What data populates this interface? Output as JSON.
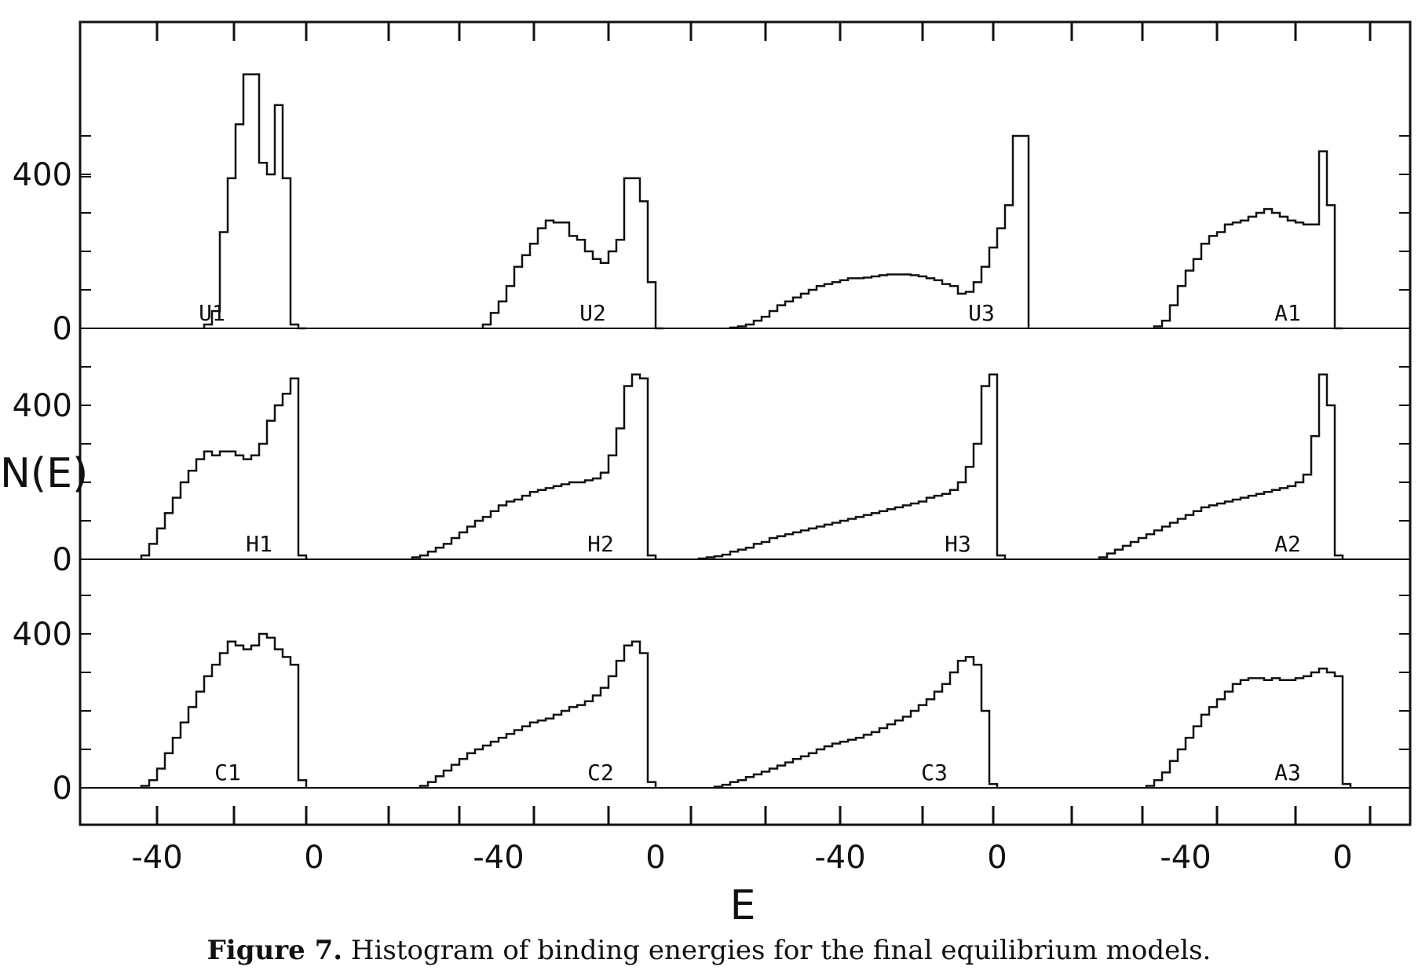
{
  "caption": {
    "label": "Figure 7.",
    "text": "Histogram of binding energies for the final equilibrium models."
  },
  "chart_data": {
    "type": "histogram",
    "xlabel": "E",
    "ylabel": "N(E)",
    "layout": "3 rows x 4 columns of histograms sharing axes",
    "x_ticks": [
      "-40",
      "0"
    ],
    "y_ticks": [
      "0",
      "400"
    ],
    "xlim": [
      -52,
      8
    ],
    "ylim": [
      -100,
      640
    ],
    "panels": [
      {
        "name": "U1",
        "row": 0,
        "col": 0,
        "bin_width": 2,
        "edges": [
          -28,
          -26,
          -24,
          -22,
          -20,
          -18,
          -16,
          -14,
          -12,
          -10,
          -8,
          -6,
          -4,
          -2
        ],
        "counts": [
          10,
          45,
          250,
          390,
          530,
          660,
          660,
          430,
          400,
          580,
          390,
          10,
          0
        ]
      },
      {
        "name": "U2",
        "row": 0,
        "col": 1,
        "bin_width": 2,
        "edges": [
          -44,
          -42,
          -40,
          -38,
          -36,
          -34,
          -32,
          -30,
          -28,
          -26,
          -24,
          -22,
          -20,
          -18,
          -16,
          -14,
          -12,
          -10,
          -8,
          -6,
          -4,
          -2,
          0,
          2
        ],
        "counts": [
          10,
          40,
          70,
          110,
          160,
          190,
          220,
          260,
          280,
          275,
          275,
          240,
          230,
          200,
          180,
          170,
          200,
          230,
          390,
          390,
          330,
          120,
          0
        ]
      },
      {
        "name": "U3",
        "row": 0,
        "col": 2,
        "bin_width": 2,
        "edges": [
          -68,
          -66,
          -64,
          -62,
          -60,
          -58,
          -56,
          -54,
          -52,
          -50,
          -48,
          -46,
          -44,
          -42,
          -40,
          -38,
          -36,
          -34,
          -32,
          -30,
          -28,
          -26,
          -24,
          -22,
          -20,
          -18,
          -16,
          -14,
          -12,
          -10,
          -8,
          -6,
          -4,
          -2,
          0,
          2,
          4,
          6,
          8
        ],
        "counts": [
          2,
          5,
          10,
          20,
          30,
          45,
          60,
          70,
          80,
          90,
          100,
          110,
          115,
          120,
          125,
          130,
          130,
          132,
          135,
          138,
          140,
          140,
          140,
          138,
          135,
          130,
          125,
          115,
          110,
          90,
          95,
          120,
          160,
          210,
          260,
          320,
          500,
          500
        ]
      },
      {
        "name": "A1",
        "row": 0,
        "col": 3,
        "bin_width": 2,
        "edges": [
          -48,
          -46,
          -44,
          -42,
          -40,
          -38,
          -36,
          -34,
          -32,
          -30,
          -28,
          -26,
          -24,
          -22,
          -20,
          -18,
          -16,
          -14,
          -12,
          -10,
          -8,
          -6,
          -4,
          -2,
          0
        ],
        "counts": [
          5,
          20,
          60,
          110,
          150,
          180,
          220,
          240,
          250,
          270,
          275,
          280,
          290,
          300,
          310,
          300,
          290,
          280,
          275,
          270,
          270,
          460,
          320,
          0
        ]
      },
      {
        "name": "H1",
        "row": 1,
        "col": 0,
        "bin_width": 2,
        "edges": [
          -44,
          -42,
          -40,
          -38,
          -36,
          -34,
          -32,
          -30,
          -28,
          -26,
          -24,
          -22,
          -20,
          -18,
          -16,
          -14,
          -12,
          -10,
          -8,
          -6,
          -4,
          -2
        ],
        "counts": [
          10,
          40,
          80,
          120,
          160,
          200,
          230,
          260,
          280,
          270,
          280,
          280,
          270,
          260,
          270,
          300,
          360,
          400,
          430,
          470,
          10
        ]
      },
      {
        "name": "H2",
        "row": 1,
        "col": 1,
        "bin_width": 2,
        "edges": [
          -62,
          -60,
          -58,
          -56,
          -54,
          -52,
          -50,
          -48,
          -46,
          -44,
          -42,
          -40,
          -38,
          -36,
          -34,
          -32,
          -30,
          -28,
          -26,
          -24,
          -22,
          -20,
          -18,
          -16,
          -14,
          -12,
          -10,
          -8,
          -6,
          -4,
          -2,
          0
        ],
        "counts": [
          5,
          10,
          20,
          30,
          40,
          55,
          70,
          85,
          100,
          110,
          125,
          140,
          150,
          155,
          165,
          175,
          180,
          185,
          190,
          195,
          200,
          200,
          205,
          210,
          225,
          270,
          340,
          450,
          480,
          470,
          10
        ]
      },
      {
        "name": "H3",
        "row": 1,
        "col": 2,
        "bin_width": 2,
        "edges": [
          -76,
          -74,
          -72,
          -70,
          -68,
          -66,
          -64,
          -62,
          -60,
          -58,
          -56,
          -54,
          -52,
          -50,
          -48,
          -46,
          -44,
          -42,
          -40,
          -38,
          -36,
          -34,
          -32,
          -30,
          -28,
          -26,
          -24,
          -22,
          -20,
          -18,
          -16,
          -14,
          -12,
          -10,
          -8,
          -6,
          -4,
          -2,
          0,
          2
        ],
        "counts": [
          2,
          5,
          8,
          12,
          20,
          25,
          30,
          40,
          45,
          55,
          60,
          65,
          70,
          75,
          80,
          85,
          90,
          95,
          100,
          105,
          110,
          115,
          120,
          125,
          130,
          135,
          140,
          145,
          150,
          160,
          165,
          170,
          180,
          200,
          240,
          300,
          450,
          480,
          10
        ]
      },
      {
        "name": "A2",
        "row": 1,
        "col": 3,
        "bin_width": 2,
        "edges": [
          -62,
          -60,
          -58,
          -56,
          -54,
          -52,
          -50,
          -48,
          -46,
          -44,
          -42,
          -40,
          -38,
          -36,
          -34,
          -32,
          -30,
          -28,
          -26,
          -24,
          -22,
          -20,
          -18,
          -16,
          -14,
          -12,
          -10,
          -8,
          -6,
          -4,
          -2,
          0
        ],
        "counts": [
          5,
          15,
          25,
          35,
          45,
          55,
          65,
          75,
          85,
          95,
          105,
          115,
          125,
          135,
          140,
          145,
          150,
          155,
          160,
          165,
          170,
          175,
          180,
          185,
          190,
          200,
          220,
          320,
          480,
          400,
          10
        ]
      },
      {
        "name": "C1",
        "row": 2,
        "col": 0,
        "bin_width": 2,
        "edges": [
          -44,
          -42,
          -40,
          -38,
          -36,
          -34,
          -32,
          -30,
          -28,
          -26,
          -24,
          -22,
          -20,
          -18,
          -16,
          -14,
          -12,
          -10,
          -8,
          -6,
          -4,
          -2
        ],
        "counts": [
          5,
          20,
          50,
          90,
          130,
          170,
          210,
          250,
          290,
          320,
          350,
          380,
          370,
          360,
          370,
          400,
          390,
          360,
          340,
          320,
          20
        ]
      },
      {
        "name": "C2",
        "row": 2,
        "col": 1,
        "bin_width": 2,
        "edges": [
          -60,
          -58,
          -56,
          -54,
          -52,
          -50,
          -48,
          -46,
          -44,
          -42,
          -40,
          -38,
          -36,
          -34,
          -32,
          -30,
          -28,
          -26,
          -24,
          -22,
          -20,
          -18,
          -16,
          -14,
          -12,
          -10,
          -8,
          -6,
          -4,
          -2,
          0
        ],
        "counts": [
          5,
          15,
          30,
          45,
          60,
          75,
          90,
          100,
          110,
          120,
          130,
          140,
          150,
          160,
          170,
          175,
          180,
          190,
          200,
          210,
          215,
          225,
          240,
          260,
          290,
          330,
          370,
          380,
          350,
          15
        ]
      },
      {
        "name": "C3",
        "row": 2,
        "col": 2,
        "bin_width": 2,
        "edges": [
          -72,
          -70,
          -68,
          -66,
          -64,
          -62,
          -60,
          -58,
          -56,
          -54,
          -52,
          -50,
          -48,
          -46,
          -44,
          -42,
          -40,
          -38,
          -36,
          -34,
          -32,
          -30,
          -28,
          -26,
          -24,
          -22,
          -20,
          -18,
          -16,
          -14,
          -12,
          -10,
          -8,
          -6,
          -4,
          -2,
          0
        ],
        "counts": [
          3,
          8,
          15,
          20,
          28,
          35,
          42,
          50,
          58,
          66,
          75,
          82,
          90,
          100,
          108,
          115,
          120,
          125,
          130,
          138,
          145,
          155,
          165,
          175,
          185,
          200,
          215,
          230,
          250,
          270,
          300,
          330,
          340,
          320,
          200,
          10
        ]
      },
      {
        "name": "A3",
        "row": 2,
        "col": 3,
        "bin_width": 2,
        "edges": [
          -50,
          -48,
          -46,
          -44,
          -42,
          -40,
          -38,
          -36,
          -34,
          -32,
          -30,
          -28,
          -26,
          -24,
          -22,
          -20,
          -18,
          -16,
          -14,
          -12,
          -10,
          -8,
          -6,
          -4,
          -2,
          0,
          2
        ],
        "counts": [
          5,
          20,
          40,
          70,
          100,
          130,
          160,
          190,
          210,
          230,
          250,
          270,
          280,
          285,
          285,
          280,
          285,
          280,
          280,
          285,
          290,
          300,
          310,
          300,
          290,
          10
        ]
      }
    ]
  }
}
